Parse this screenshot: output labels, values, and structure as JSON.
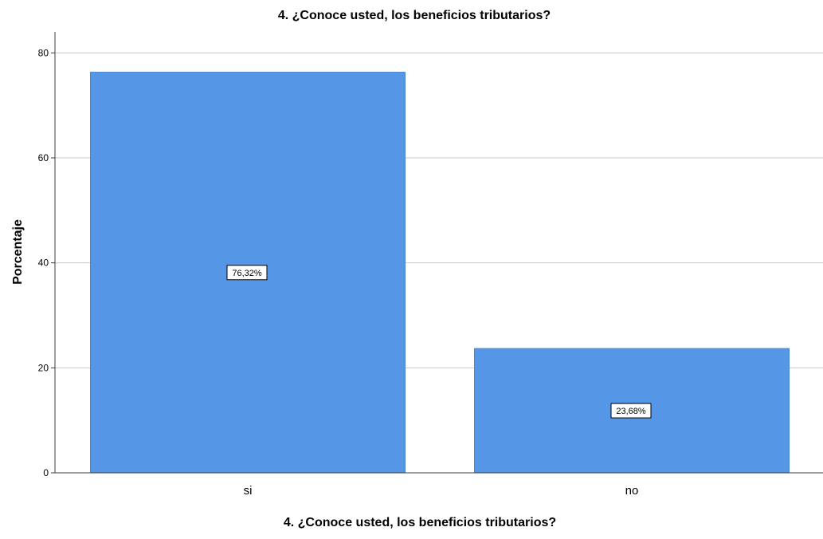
{
  "chart_data": {
    "type": "bar",
    "title": "4. ¿Conoce usted, los beneficios tributarios?",
    "xlabel": "4. ¿Conoce usted, los beneficios tributarios?",
    "ylabel": "Porcentaje",
    "categories": [
      "si",
      "no"
    ],
    "values": [
      76.32,
      23.68
    ],
    "data_labels": [
      "76,32%",
      "23,68%"
    ],
    "ylim": [
      0,
      84
    ],
    "yticks": [
      0,
      20,
      40,
      60,
      80
    ],
    "ytick_labels": [
      "0",
      "20",
      "40",
      "60",
      "80"
    ],
    "grid": true,
    "legend": "none",
    "bar_color": "#5596E6",
    "bar_edge_color": "#4A86D0",
    "grid_color": "#C8C8C8",
    "axis_color": "#3C3C3C"
  }
}
